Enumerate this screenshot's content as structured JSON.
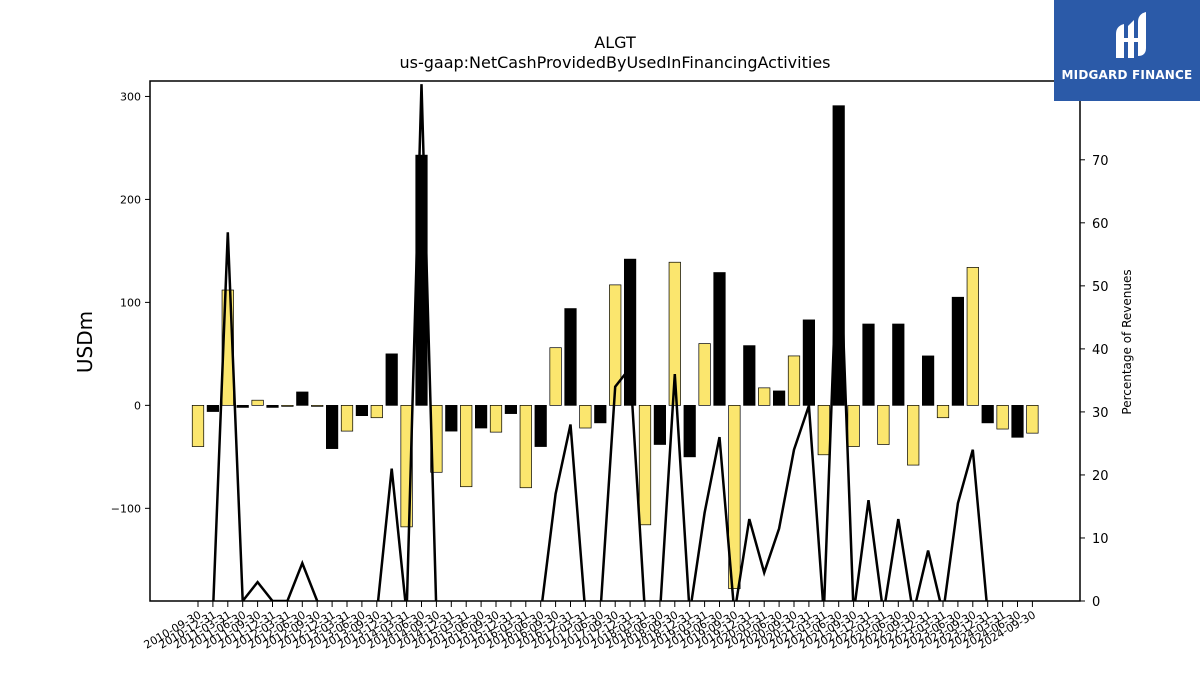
{
  "logo": {
    "text": "MIDGARD FINANCE"
  },
  "colors": {
    "positive": "#fbe66e",
    "negative": "#000000",
    "line": "#000000",
    "logo_bg": "#2b5aa8"
  },
  "chart_data": {
    "type": "bar",
    "title": "ALGT",
    "subtitle": "us-gaap:NetCashProvidedByUsedInFinancingActivities",
    "ylabel": "USDm",
    "y2label": "Percentage of Revenues",
    "ylim": [
      -190,
      315
    ],
    "y2lim": [
      0,
      82.5
    ],
    "yticks": [
      -100,
      0,
      100,
      200,
      300
    ],
    "y2ticks": [
      0,
      10,
      20,
      30,
      40,
      50,
      60,
      70
    ],
    "categories": [
      "2010-09-30",
      "2010-12-31",
      "2011-03-31",
      "2011-06-30",
      "2011-09-30",
      "2011-12-31",
      "2012-03-31",
      "2012-06-30",
      "2012-09-30",
      "2012-12-31",
      "2013-03-31",
      "2013-06-30",
      "2013-09-30",
      "2013-12-31",
      "2014-03-31",
      "2014-06-30",
      "2014-09-30",
      "2014-12-31",
      "2015-03-31",
      "2015-06-30",
      "2015-09-30",
      "2015-12-31",
      "2016-03-31",
      "2016-06-30",
      "2016-09-30",
      "2016-12-31",
      "2017-03-31",
      "2017-06-30",
      "2017-09-30",
      "2017-12-31",
      "2018-03-31",
      "2018-06-30",
      "2018-09-30",
      "2018-12-31",
      "2019-03-31",
      "2019-06-30",
      "2019-09-30",
      "2019-12-31",
      "2020-03-31",
      "2020-06-30",
      "2020-09-30",
      "2020-12-31",
      "2021-03-31",
      "2021-06-30",
      "2021-09-30",
      "2021-12-31",
      "2022-03-31",
      "2022-06-30",
      "2022-09-30",
      "2022-12-31",
      "2023-03-31",
      "2023-06-30",
      "2023-09-30",
      "2023-12-31",
      "2024-03-31",
      "2024-06-30",
      "2024-09-30"
    ],
    "series": [
      {
        "values": [
          -40,
          -6,
          112,
          -2,
          5,
          -2,
          -1,
          13,
          -1,
          -42,
          -25,
          -10,
          -12,
          50,
          -118,
          243,
          -65,
          -25,
          -79,
          -22,
          -26,
          -8,
          -80,
          -40,
          56,
          94,
          -22,
          -17,
          117,
          142,
          -116,
          -38,
          139,
          -50,
          60,
          129,
          -178,
          58,
          17,
          14,
          48,
          83,
          -48,
          291,
          -40,
          79,
          -38,
          79,
          -58,
          48,
          -12,
          105,
          134,
          -17,
          -23,
          -31,
          -27
        ]
      },
      {
        "values": [
          -2,
          -2,
          58.5,
          0,
          3,
          0,
          0,
          6,
          0,
          -2,
          -2,
          -2,
          -2,
          21,
          -2,
          82,
          -2,
          -2,
          -2,
          -2,
          -2,
          -2,
          -2,
          -2,
          17,
          28,
          -2,
          -2,
          34,
          37,
          -2,
          -2,
          36,
          -2,
          14,
          26,
          -2,
          13,
          4.5,
          11.5,
          24,
          31,
          -2,
          62,
          -2,
          16,
          -2,
          13,
          -2,
          8,
          -2,
          15.5,
          24,
          -2,
          -2,
          -2,
          -2
        ]
      }
    ]
  }
}
